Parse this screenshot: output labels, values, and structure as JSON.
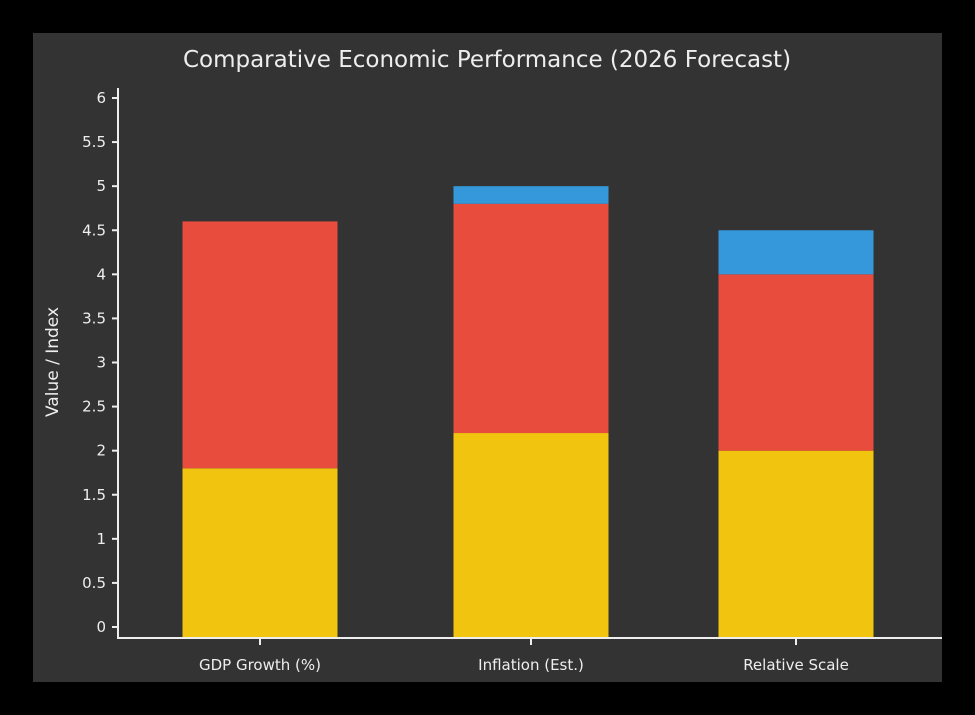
{
  "chart_data": {
    "type": "bar",
    "stacked": true,
    "title": "Comparative Economic Performance (2026 Forecast)",
    "xlabel": "",
    "ylabel": "Value / Index",
    "ylim": [
      0,
      6
    ],
    "yticks": [
      "0",
      "0.5",
      "1",
      "1.5",
      "2",
      "2.5",
      "3",
      "3.5",
      "4",
      "4.5",
      "5",
      "5.5",
      "6"
    ],
    "categories": [
      "GDP Growth (%)",
      "Inflation (Est.)",
      "Relative Scale"
    ],
    "series": [
      {
        "color": "#f1c40f",
        "values": [
          1.8,
          2.2,
          2.0
        ]
      },
      {
        "color": "#e74c3c",
        "values": [
          2.8,
          2.6,
          2.0
        ]
      },
      {
        "color": "#3498db",
        "values": [
          0,
          0.2,
          0.5
        ]
      }
    ],
    "grid": false,
    "legend": "none",
    "background": "#333333"
  }
}
